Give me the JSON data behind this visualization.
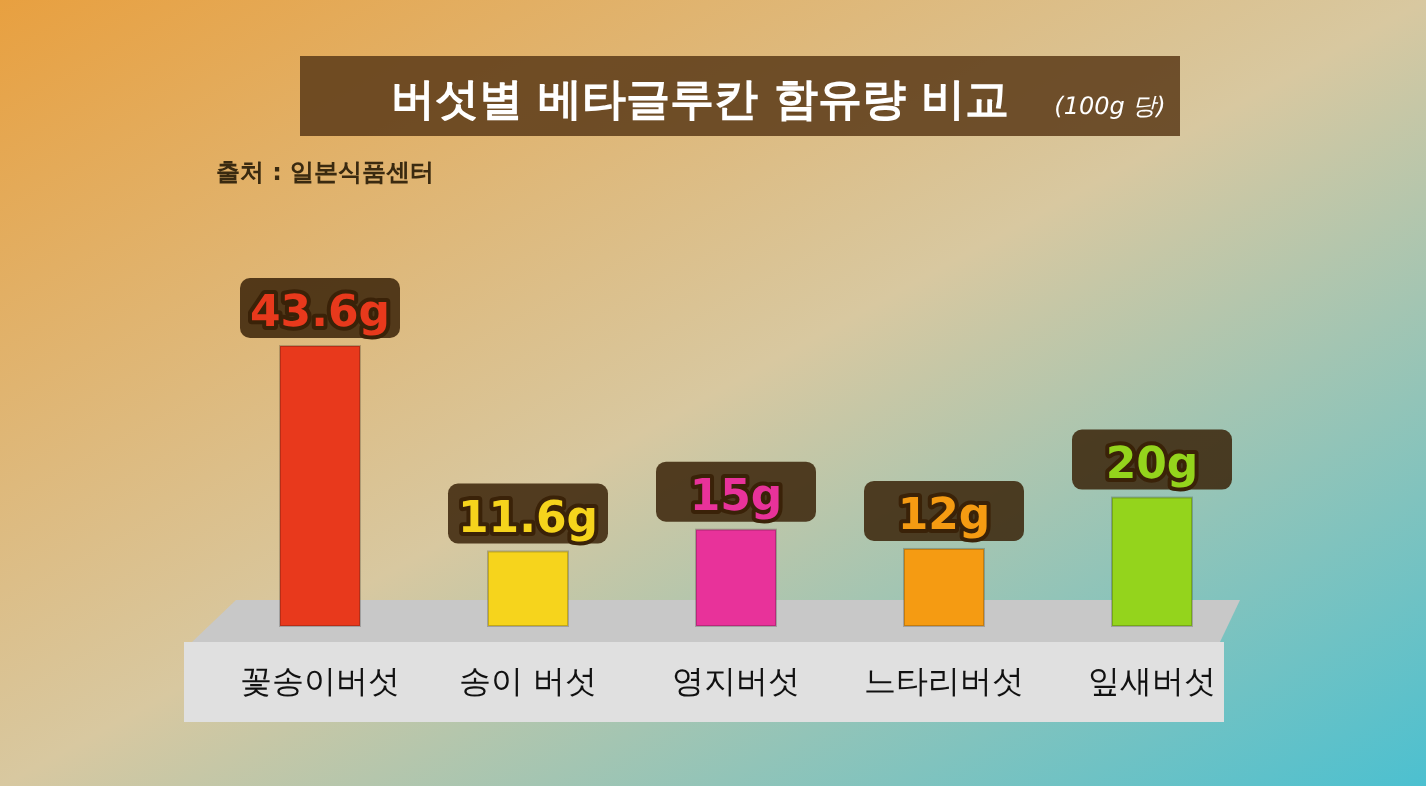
{
  "chart_data": {
    "type": "bar",
    "title": "버섯별 베타글루칸 함유량 비교",
    "subtitle": "(100g 당)",
    "annotations": [
      "출처 : 일본식품센터"
    ],
    "categories": [
      "꽃송이버섯",
      "송이 버섯",
      "영지버섯",
      "느타리버섯",
      "잎새버섯"
    ],
    "values": [
      43.6,
      11.6,
      15,
      12,
      20
    ],
    "colors": [
      "#e8391c",
      "#f6d41c",
      "#e8329a",
      "#f59b12",
      "#94d41c"
    ],
    "value_labels": [
      "43.6g",
      "11.6g",
      "15g",
      "12g",
      "20g"
    ]
  }
}
